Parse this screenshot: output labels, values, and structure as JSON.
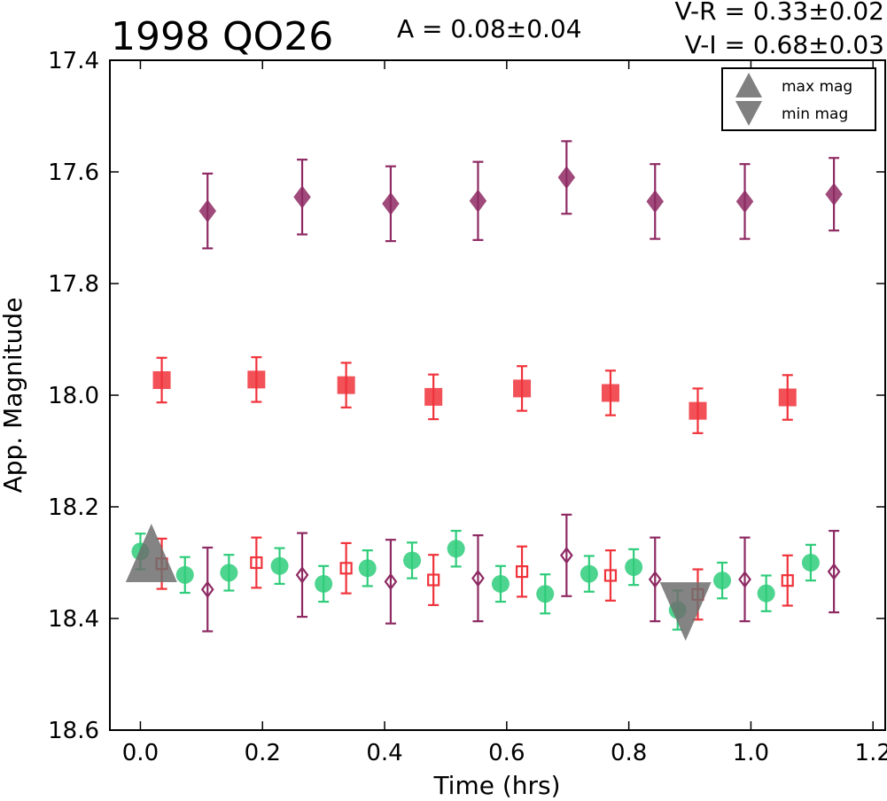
{
  "chart_data": {
    "type": "scatter",
    "title": "1998 QO26",
    "amplitude_label": "A  = 0.08±0.04",
    "color_labels": [
      "V-R = 0.33±0.02",
      "V-I  = 0.68±0.03"
    ],
    "xlabel": "Time (hrs)",
    "ylabel": "App. Magnitude",
    "xlim": [
      -0.05,
      1.22
    ],
    "ylim": [
      18.6,
      17.4
    ],
    "y_inverted": true,
    "x_ticks": [
      0.0,
      0.2,
      0.4,
      0.6,
      0.8,
      1.0,
      1.2
    ],
    "x_tick_labels": [
      "0.0",
      "0.2",
      "0.4",
      "0.6",
      "0.8",
      "1.0",
      "1.2"
    ],
    "y_ticks": [
      17.4,
      17.6,
      17.8,
      18.0,
      18.2,
      18.4,
      18.6
    ],
    "y_tick_labels": [
      "17.4",
      "17.6",
      "17.8",
      "18.0",
      "18.2",
      "18.4",
      "18.6"
    ],
    "grid": false,
    "legend_position": "top-right",
    "legend": [
      {
        "label": "max mag",
        "marker": "triangle-up",
        "color": "#808080"
      },
      {
        "label": "min mag",
        "marker": "triangle-down",
        "color": "#808080"
      }
    ],
    "series": [
      {
        "marker": "diamond",
        "filled": true,
        "color": "#8e2a63",
        "size": 26,
        "points": [
          {
            "x": 0.11,
            "y": 17.67,
            "err": 0.067
          },
          {
            "x": 0.265,
            "y": 17.645,
            "err": 0.067
          },
          {
            "x": 0.41,
            "y": 17.657,
            "err": 0.067
          },
          {
            "x": 0.553,
            "y": 17.652,
            "err": 0.07
          },
          {
            "x": 0.698,
            "y": 17.61,
            "err": 0.065
          },
          {
            "x": 0.843,
            "y": 17.653,
            "err": 0.067
          },
          {
            "x": 0.99,
            "y": 17.653,
            "err": 0.067
          },
          {
            "x": 1.136,
            "y": 17.64,
            "err": 0.065
          }
        ]
      },
      {
        "marker": "square",
        "filled": true,
        "color": "#f0333b",
        "size": 20,
        "points": [
          {
            "x": 0.035,
            "y": 17.973,
            "err": 0.04
          },
          {
            "x": 0.19,
            "y": 17.972,
            "err": 0.04
          },
          {
            "x": 0.337,
            "y": 17.982,
            "err": 0.04
          },
          {
            "x": 0.48,
            "y": 18.003,
            "err": 0.04
          },
          {
            "x": 0.625,
            "y": 17.988,
            "err": 0.04
          },
          {
            "x": 0.77,
            "y": 17.996,
            "err": 0.04
          },
          {
            "x": 0.913,
            "y": 18.028,
            "err": 0.04
          },
          {
            "x": 1.06,
            "y": 18.004,
            "err": 0.04
          }
        ]
      },
      {
        "marker": "circle",
        "filled": true,
        "color": "#2ecc7a",
        "size": 20,
        "points": [
          {
            "x": 0.0,
            "y": 18.28,
            "err": 0.032
          },
          {
            "x": 0.073,
            "y": 18.322,
            "err": 0.032
          },
          {
            "x": 0.145,
            "y": 18.318,
            "err": 0.032
          },
          {
            "x": 0.228,
            "y": 18.306,
            "err": 0.032
          },
          {
            "x": 0.3,
            "y": 18.338,
            "err": 0.032
          },
          {
            "x": 0.372,
            "y": 18.31,
            "err": 0.032
          },
          {
            "x": 0.445,
            "y": 18.296,
            "err": 0.032
          },
          {
            "x": 0.517,
            "y": 18.275,
            "err": 0.032
          },
          {
            "x": 0.59,
            "y": 18.338,
            "err": 0.032
          },
          {
            "x": 0.663,
            "y": 18.356,
            "err": 0.035
          },
          {
            "x": 0.735,
            "y": 18.32,
            "err": 0.032
          },
          {
            "x": 0.808,
            "y": 18.308,
            "err": 0.032
          },
          {
            "x": 0.88,
            "y": 18.385,
            "err": 0.035
          },
          {
            "x": 0.953,
            "y": 18.332,
            "err": 0.032
          },
          {
            "x": 1.025,
            "y": 18.355,
            "err": 0.032
          },
          {
            "x": 1.098,
            "y": 18.3,
            "err": 0.032
          }
        ]
      },
      {
        "marker": "square",
        "filled": false,
        "color": "#f0333b",
        "size": 12,
        "points": [
          {
            "x": 0.035,
            "y": 18.302,
            "err": 0.045
          },
          {
            "x": 0.19,
            "y": 18.3,
            "err": 0.045
          },
          {
            "x": 0.337,
            "y": 18.31,
            "err": 0.045
          },
          {
            "x": 0.48,
            "y": 18.331,
            "err": 0.045
          },
          {
            "x": 0.625,
            "y": 18.316,
            "err": 0.045
          },
          {
            "x": 0.77,
            "y": 18.323,
            "err": 0.045
          },
          {
            "x": 0.913,
            "y": 18.357,
            "err": 0.045
          },
          {
            "x": 1.06,
            "y": 18.332,
            "err": 0.045
          }
        ]
      },
      {
        "marker": "diamond",
        "filled": false,
        "color": "#8e2a63",
        "size": 16,
        "points": [
          {
            "x": 0.11,
            "y": 18.348,
            "err": 0.075
          },
          {
            "x": 0.265,
            "y": 18.322,
            "err": 0.075
          },
          {
            "x": 0.41,
            "y": 18.334,
            "err": 0.075
          },
          {
            "x": 0.553,
            "y": 18.328,
            "err": 0.077
          },
          {
            "x": 0.698,
            "y": 18.287,
            "err": 0.073
          },
          {
            "x": 0.843,
            "y": 18.33,
            "err": 0.075
          },
          {
            "x": 0.99,
            "y": 18.33,
            "err": 0.075
          },
          {
            "x": 1.136,
            "y": 18.316,
            "err": 0.073
          }
        ]
      }
    ],
    "extrema": [
      {
        "type": "max mag",
        "marker": "triangle-up",
        "x": 0.018,
        "y": 18.3,
        "color": "#6e6e6e"
      },
      {
        "type": "min mag",
        "marker": "triangle-down",
        "x": 0.893,
        "y": 18.37,
        "color": "#6e6e6e"
      }
    ]
  }
}
